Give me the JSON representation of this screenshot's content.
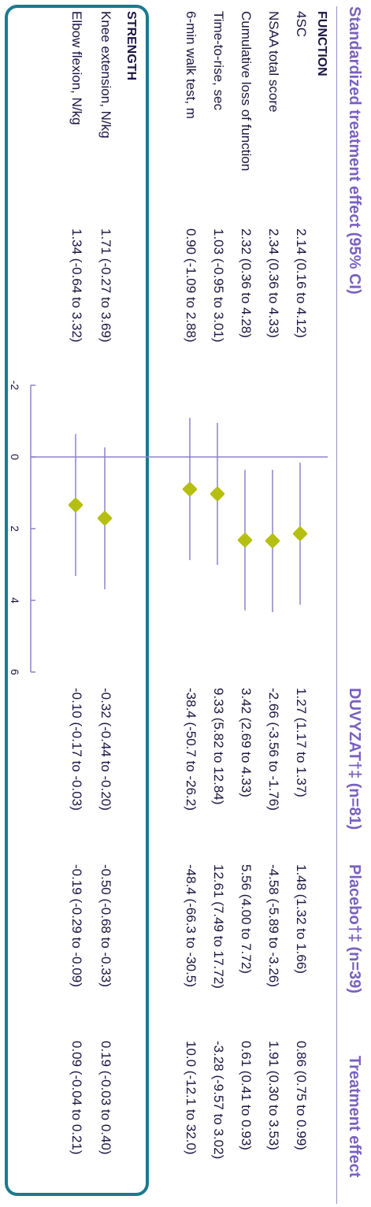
{
  "headers": {
    "effect": "Standardized treatment effect (95% CI)",
    "duvyzat": "DUVYZAT†‡ (n=81)",
    "placebo": "Placebo†‡ (n=39)",
    "treatment": "Treatment effect"
  },
  "sections": {
    "function": "FUNCTION",
    "strength": "STRENGTH"
  },
  "colors": {
    "marker": "#b5bf0f",
    "ci_line": "#8c83c8",
    "header": "#7a60c0",
    "strength_box": "#1b7a8c"
  },
  "chart_data": {
    "type": "forest",
    "x_ticks": [
      "-2",
      "0",
      "2",
      "4",
      "6"
    ],
    "xlim": [
      -2,
      6
    ],
    "reference_line": 0,
    "rows": [
      {
        "section": "FUNCTION",
        "label": "4SC",
        "estimate": 2.14,
        "lower": 0.16,
        "upper": 4.12,
        "ci_text": "2.14 (0.16 to 4.12)",
        "duvyzat": "1.27 (1.17 to 1.37)",
        "placebo": "1.48 (1.32 to 1.66)",
        "treatment": "0.86 (0.75 to 0.99)"
      },
      {
        "section": "FUNCTION",
        "label": "NSAA total score",
        "estimate": 2.34,
        "lower": 0.36,
        "upper": 4.33,
        "ci_text": "2.34 (0.36 to 4.33)",
        "duvyzat": "-2.66 (-3.56 to -1.76)",
        "placebo": "-4.58 (-5.89 to -3.26)",
        "treatment": "1.91 (0.30 to 3.53)"
      },
      {
        "section": "FUNCTION",
        "label": "Cumulative loss of function",
        "estimate": 2.32,
        "lower": 0.36,
        "upper": 4.28,
        "ci_text": "2.32 (0.36 to 4.28)",
        "duvyzat": "3.42 (2.69 to 4.33)",
        "placebo": "5.56 (4.00 to 7.72)",
        "treatment": "0.61 (0.41 to 0.93)"
      },
      {
        "section": "FUNCTION",
        "label": "Time-to-rise, sec",
        "estimate": 1.03,
        "lower": -0.95,
        "upper": 3.01,
        "ci_text": "1.03 (-0.95 to 3.01)",
        "duvyzat": "9.33 (5.82 to 12.84)",
        "placebo": "12.61 (7.49 to 17.72)",
        "treatment": "-3.28 (-9.57 to 3.02)"
      },
      {
        "section": "FUNCTION",
        "label": "6-min walk test, m",
        "estimate": 0.9,
        "lower": -1.09,
        "upper": 2.88,
        "ci_text": "0.90 (-1.09 to 2.88)",
        "duvyzat": "-38.4 (-50.7 to -26.2)",
        "placebo": "-48.4 (-66.3 to -30.5)",
        "treatment": "10.0 (-12.1 to 32.0)"
      },
      {
        "section": "STRENGTH",
        "label": "Knee extension, N/kg",
        "estimate": 1.71,
        "lower": -0.27,
        "upper": 3.69,
        "ci_text": "1.71 (-0.27 to 3.69)",
        "duvyzat": "-0.32 (-0.44 to -0.20)",
        "placebo": "-0.50 (-0.68 to -0.33)",
        "treatment": "0.19 (-0.03 to 0.40)"
      },
      {
        "section": "STRENGTH",
        "label": "Elbow flexion, N/kg",
        "estimate": 1.34,
        "lower": -0.64,
        "upper": 3.32,
        "ci_text": "1.34 (-0.64 to 3.32)",
        "duvyzat": "-0.10 (-0.17 to -0.03)",
        "placebo": "-0.19 (-0.29 to -0.09)",
        "treatment": "0.09 (-0.04 to 0.21)"
      }
    ]
  }
}
